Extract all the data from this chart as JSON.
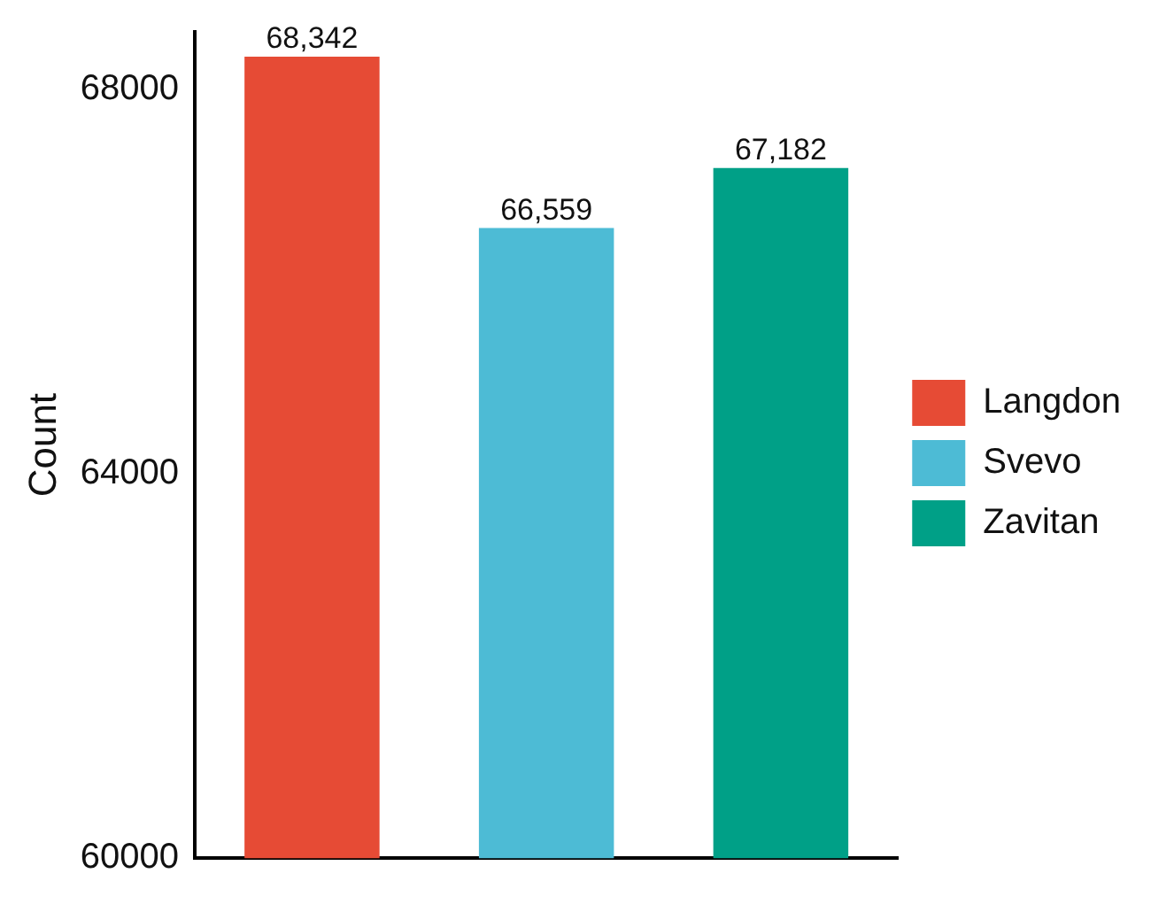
{
  "chart_data": {
    "type": "bar",
    "ylabel": "Count",
    "categories": [
      null,
      null,
      null
    ],
    "series": [
      {
        "name": "Langdon",
        "color": "#e64b35",
        "values": [
          68342,
          null,
          null
        ],
        "value_labels": [
          "68,342",
          null,
          null
        ]
      },
      {
        "name": "Svevo",
        "color": "#4dbbd5",
        "values": [
          null,
          66559,
          null
        ],
        "value_labels": [
          null,
          "66,559",
          null
        ]
      },
      {
        "name": "Zavitan",
        "color": "#00a087",
        "values": [
          null,
          null,
          67182
        ],
        "value_labels": [
          null,
          null,
          "67,182"
        ]
      }
    ],
    "ylim": [
      60000,
      68600
    ],
    "yticks": [
      60000,
      64000,
      68000
    ],
    "grid": false,
    "legend": "right"
  }
}
